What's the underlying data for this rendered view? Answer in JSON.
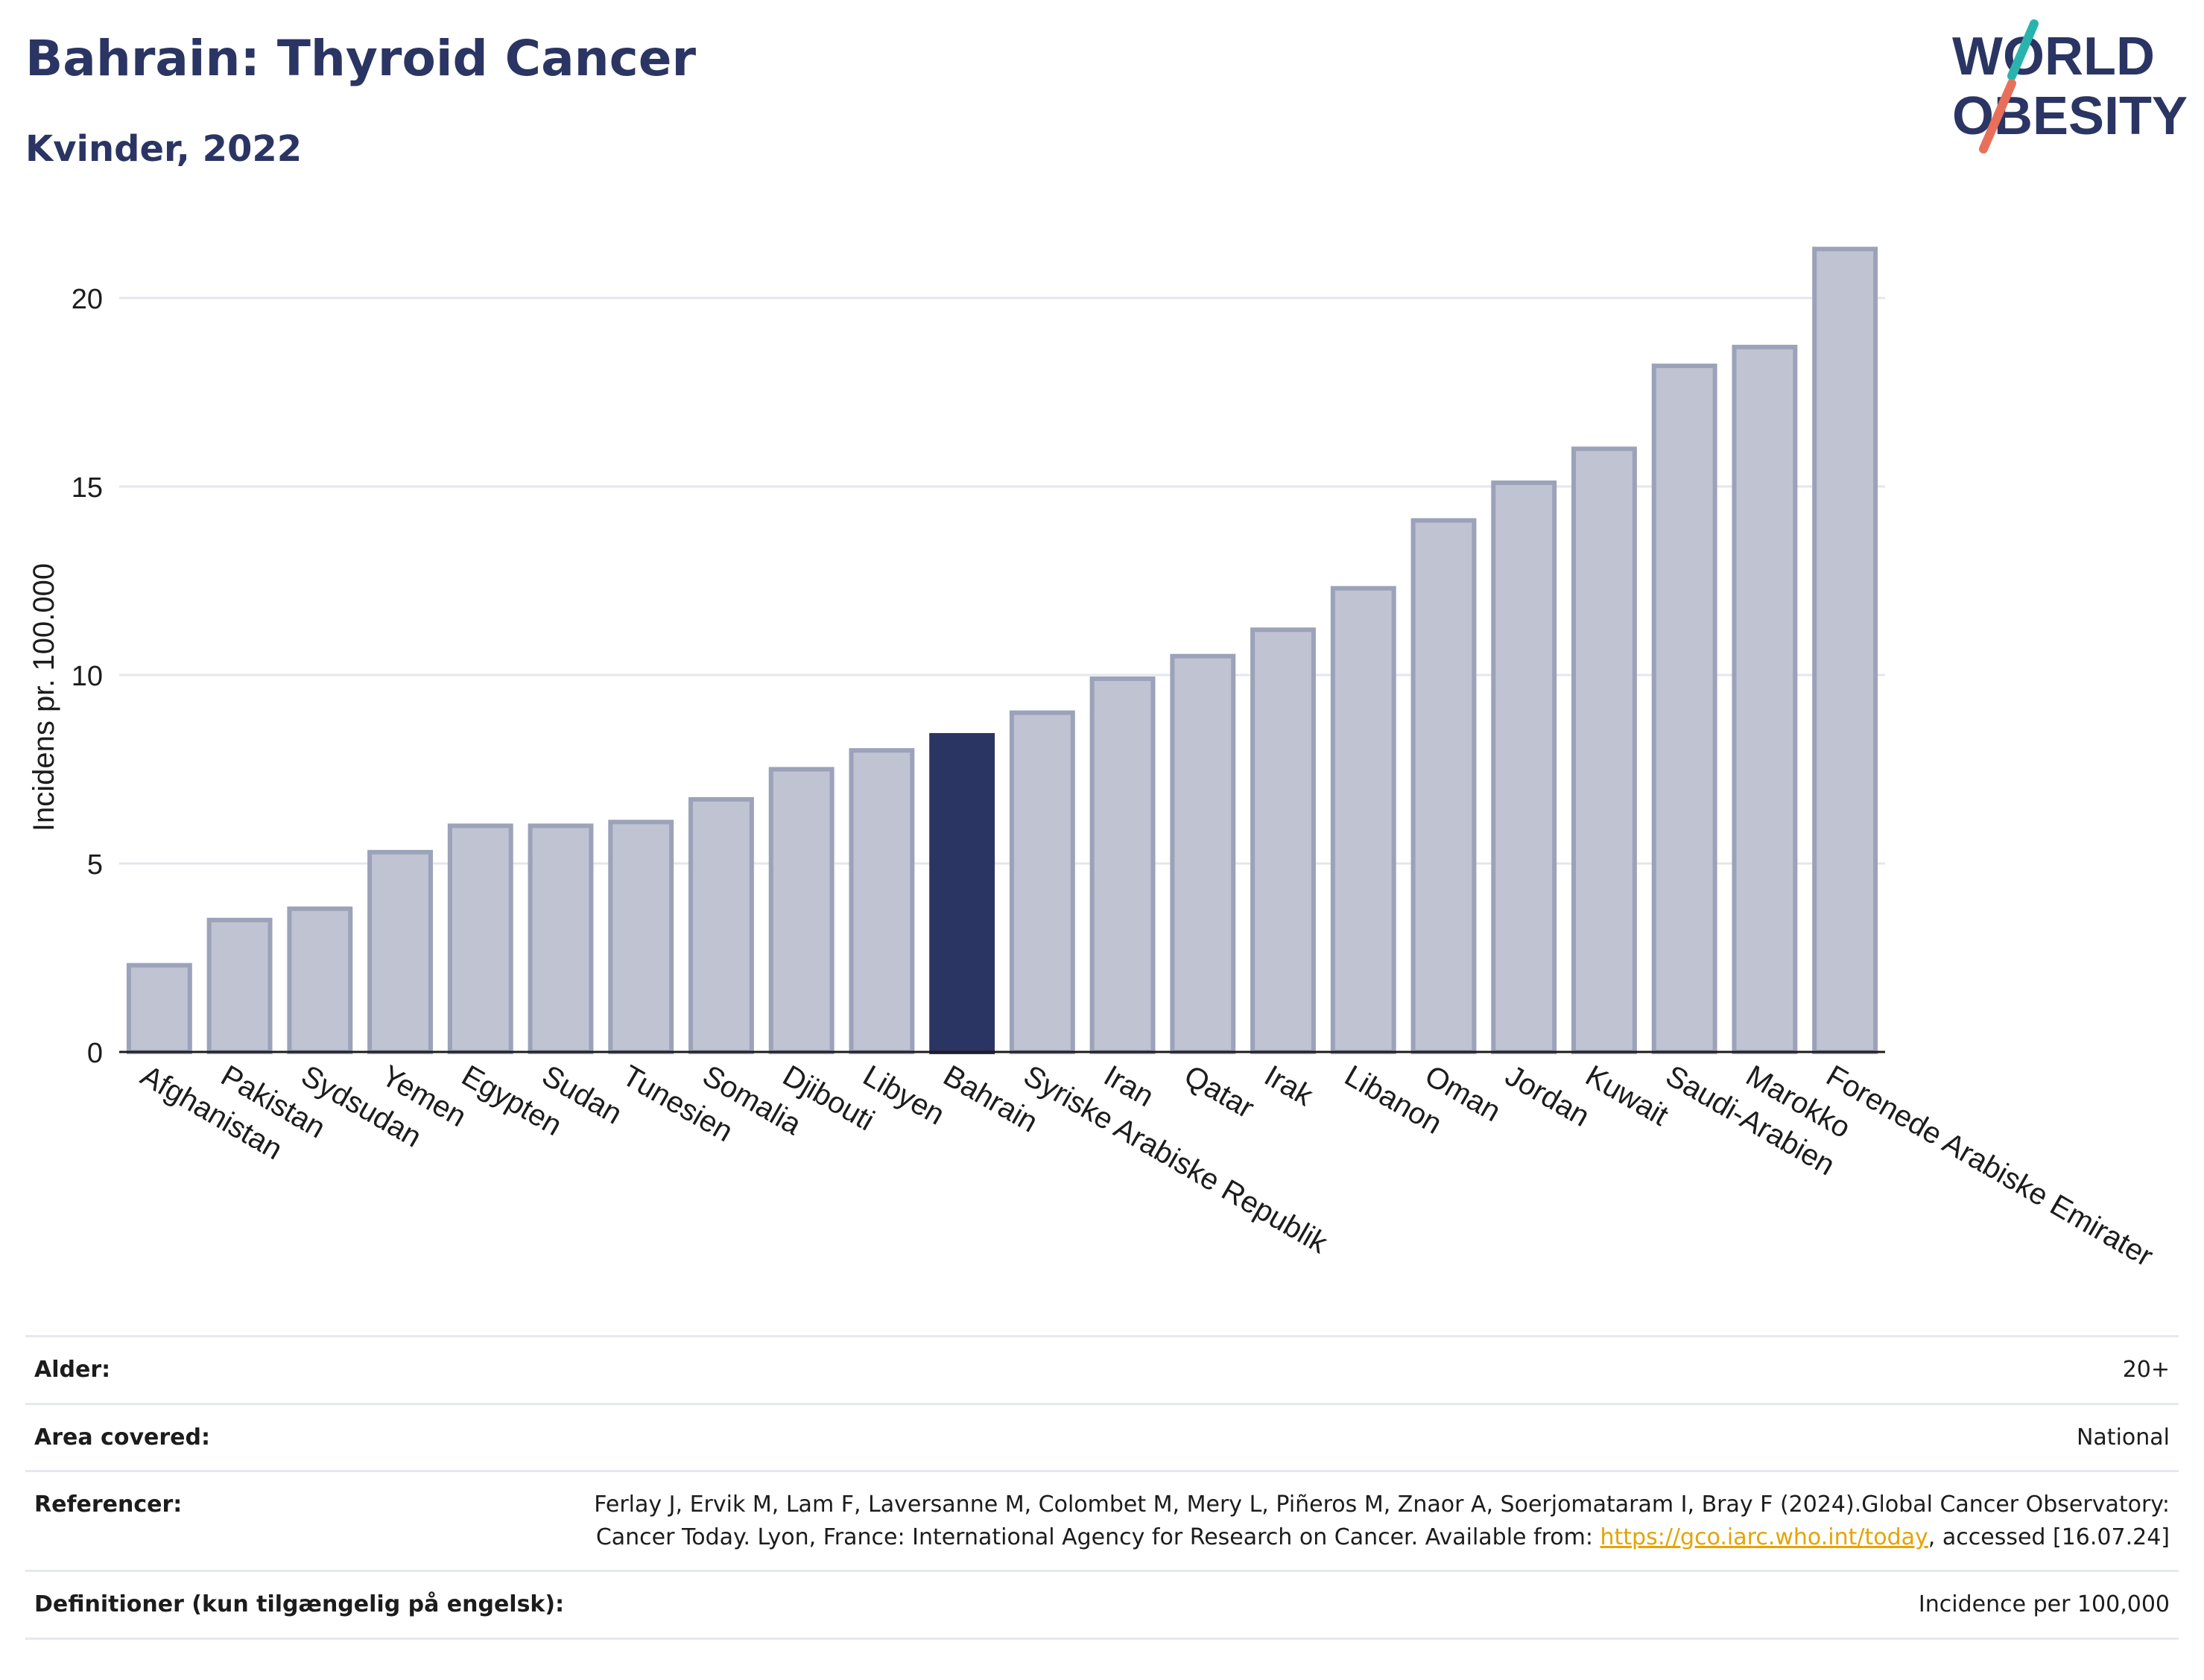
{
  "header": {
    "title": "Bahrain: Thyroid Cancer",
    "subtitle": "Kvinder, 2022"
  },
  "logo": {
    "line1": "WORLD",
    "line2": "OBESITY"
  },
  "colors": {
    "bar": "#bfc3d2",
    "bar_border": "#9ba2b9",
    "highlight": "#2b3563",
    "grid": "#e4e6ee",
    "text": "#2b3563",
    "logo_teal": "#2ab3ad",
    "logo_coral": "#e8705a"
  },
  "chart_data": {
    "type": "bar",
    "title": "",
    "ylabel": "Incidens pr. 100.000",
    "xlabel": "",
    "ylim": [
      0,
      22
    ],
    "yticks": [
      0,
      5,
      10,
      15,
      20
    ],
    "grid": true,
    "highlight": "Bahrain",
    "categories": [
      "Afghanistan",
      "Pakistan",
      "Sydsudan",
      "Yemen",
      "Egypten",
      "Sudan",
      "Tunesien",
      "Somalia",
      "Djibouti",
      "Libyen",
      "Bahrain",
      "Syriske Arabiske Republik",
      "Iran",
      "Qatar",
      "Irak",
      "Libanon",
      "Oman",
      "Jordan",
      "Kuwait",
      "Saudi-Arabien",
      "Marokko",
      "Forenede Arabiske Emirater"
    ],
    "values": [
      2.3,
      3.5,
      3.8,
      5.3,
      6.0,
      6.0,
      6.1,
      6.7,
      7.5,
      8.0,
      8.4,
      9.0,
      9.9,
      10.5,
      11.2,
      12.3,
      14.1,
      15.1,
      16.0,
      18.2,
      18.7,
      21.3
    ]
  },
  "info": [
    {
      "label": "Alder:",
      "value": "20+"
    },
    {
      "label": "Area covered:",
      "value": "National"
    },
    {
      "label": "Referencer:",
      "value_pre": "Ferlay J, Ervik M, Lam F, Laversanne M, Colombet M, Mery L, Piñeros M, Znaor A, Soerjomataram I, Bray F (2024).Global Cancer Observatory: Cancer Today. Lyon, France: International Agency for Research on Cancer. Available from: ",
      "link": "https://gco.iarc.who.int/today",
      "value_post": ", accessed [16.07.24]"
    },
    {
      "label": "Definitioner (kun tilgængelig på engelsk):",
      "value": "Incidence per 100,000"
    }
  ]
}
